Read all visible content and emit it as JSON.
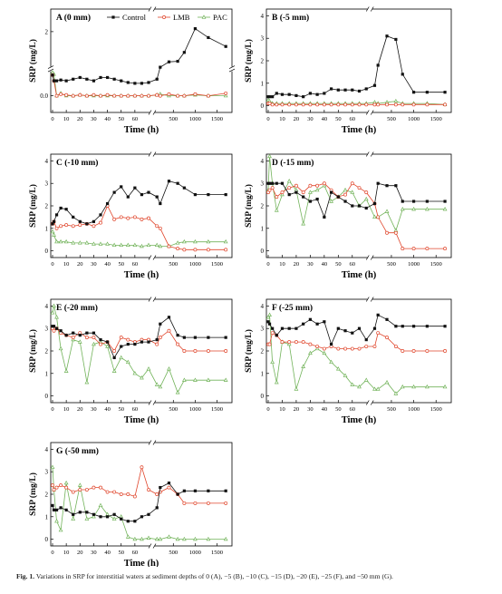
{
  "caption": {
    "label": "Fig. 1.",
    "text": "Variations in SRP for interstitial waters at sediment depths of 0 (A), −5 (B), −10 (C), −15 (D), −20 (E), −25 (F), and −50 mm (G)."
  },
  "colors": {
    "Control": "#111111",
    "LMB": "#e0452b",
    "PAC": "#72b35a"
  },
  "chart_data": [
    {
      "type": "line",
      "title": "A (0 mm)",
      "xlabel": "Time (h)",
      "ylabel": "SRP (mg/L)",
      "yticks": [
        0.0,
        2
      ],
      "ylim": [
        -0.2,
        2.7
      ],
      "ybreak": true,
      "legend": "top",
      "x": [
        0,
        1,
        3,
        6,
        10,
        15,
        20,
        25,
        30,
        35,
        40,
        45,
        50,
        55,
        60,
        65,
        70,
        125,
        200,
        400,
        600,
        750,
        1000,
        1300,
        1700
      ],
      "xticks": [
        0,
        10,
        20,
        30,
        40,
        50,
        60,
        500,
        1000,
        1500
      ],
      "series": [
        {
          "name": "Control",
          "values": [
            0.25,
            0.18,
            0.18,
            0.19,
            0.18,
            0.2,
            0.22,
            0.2,
            0.18,
            0.22,
            0.22,
            0.2,
            0.18,
            0.16,
            0.15,
            0.15,
            0.16,
            0.2,
            0.8,
            0.98,
            1.0,
            1.3,
            2.1,
            1.8,
            1.5
          ]
        },
        {
          "name": "LMB",
          "values": [
            0.25,
            0.18,
            0.0,
            0.02,
            0.01,
            0.0,
            0.01,
            0.0,
            0.01,
            0.0,
            0.01,
            0.0,
            0.0,
            0.0,
            0.0,
            0.0,
            0.0,
            0.01,
            0.0,
            0.02,
            0.0,
            0.0,
            0.02,
            0.0,
            0.03
          ]
        },
        {
          "name": "PAC",
          "values": [
            0.28,
            0.26,
            0.0,
            0.03,
            0.0,
            0.0,
            0.01,
            0.0,
            0.0,
            0.0,
            0.0,
            0.0,
            0.0,
            0.0,
            0.0,
            0.0,
            0.0,
            0.01,
            0.02,
            0.0,
            0.0,
            0.0,
            0.01,
            0.0,
            0.0
          ]
        }
      ]
    },
    {
      "type": "line",
      "title": "B (-5 mm)",
      "xlabel": "Time (h)",
      "ylabel": "SRP (mg/L)",
      "yticks": [
        0,
        1,
        2,
        3,
        4
      ],
      "ylim": [
        -0.3,
        4.3
      ],
      "x": [
        0,
        1,
        3,
        6,
        10,
        15,
        20,
        25,
        30,
        35,
        40,
        45,
        50,
        55,
        60,
        65,
        70,
        125,
        200,
        400,
        600,
        750,
        1000,
        1300,
        1700
      ],
      "xticks": [
        0,
        10,
        20,
        30,
        40,
        50,
        60,
        500,
        1000,
        1500
      ],
      "series": [
        {
          "name": "Control",
          "values": [
            0.4,
            0.4,
            0.4,
            0.55,
            0.5,
            0.5,
            0.45,
            0.4,
            0.55,
            0.5,
            0.55,
            0.75,
            0.7,
            0.7,
            0.7,
            0.65,
            0.75,
            0.9,
            1.8,
            3.1,
            2.95,
            1.4,
            0.6,
            0.6,
            0.6
          ]
        },
        {
          "name": "LMB",
          "values": [
            0.1,
            0.1,
            0.05,
            0.05,
            0.05,
            0.05,
            0.05,
            0.05,
            0.05,
            0.05,
            0.05,
            0.05,
            0.05,
            0.05,
            0.05,
            0.05,
            0.05,
            0.05,
            0.05,
            0.05,
            0.05,
            0.05,
            0.05,
            0.05,
            0.05
          ]
        },
        {
          "name": "PAC",
          "values": [
            0.25,
            0.2,
            0.1,
            0.1,
            0.1,
            0.1,
            0.1,
            0.1,
            0.1,
            0.1,
            0.1,
            0.1,
            0.1,
            0.1,
            0.1,
            0.1,
            0.1,
            0.15,
            0.1,
            0.15,
            0.2,
            0.1,
            0.1,
            0.1,
            0.05
          ]
        }
      ]
    },
    {
      "type": "line",
      "title": "C (-10 mm)",
      "xlabel": "Time (h)",
      "ylabel": "SRP (mg/L)",
      "yticks": [
        0,
        1,
        2,
        3,
        4
      ],
      "ylim": [
        -0.3,
        4.3
      ],
      "x": [
        0,
        1,
        3,
        6,
        10,
        15,
        20,
        25,
        30,
        35,
        40,
        45,
        50,
        55,
        60,
        65,
        70,
        125,
        200,
        400,
        600,
        750,
        1000,
        1300,
        1700
      ],
      "xticks": [
        0,
        10,
        20,
        30,
        40,
        50,
        60,
        500,
        1000,
        1500
      ],
      "series": [
        {
          "name": "Control",
          "values": [
            1.2,
            1.3,
            1.6,
            1.9,
            1.85,
            1.5,
            1.3,
            1.2,
            1.3,
            1.6,
            2.1,
            2.6,
            2.85,
            2.4,
            2.8,
            2.5,
            2.6,
            2.4,
            2.1,
            3.1,
            3.0,
            2.8,
            2.5,
            2.5,
            2.5
          ]
        },
        {
          "name": "LMB",
          "values": [
            1.2,
            1.3,
            1.0,
            1.1,
            1.15,
            1.1,
            1.15,
            1.2,
            1.1,
            1.25,
            2.0,
            1.4,
            1.5,
            1.45,
            1.5,
            1.4,
            1.45,
            1.1,
            1.0,
            0.2,
            0.1,
            0.05,
            0.05,
            0.05,
            0.05
          ]
        },
        {
          "name": "PAC",
          "values": [
            0.85,
            0.7,
            0.4,
            0.4,
            0.4,
            0.35,
            0.35,
            0.35,
            0.3,
            0.3,
            0.3,
            0.25,
            0.25,
            0.25,
            0.25,
            0.2,
            0.25,
            0.25,
            0.2,
            0.2,
            0.35,
            0.4,
            0.4,
            0.4,
            0.4
          ]
        }
      ]
    },
    {
      "type": "line",
      "title": "D (-15 mm)",
      "xlabel": "Time (h)",
      "ylabel": "SRP (mg/L)",
      "yticks": [
        0,
        1,
        2,
        3,
        4
      ],
      "ylim": [
        -0.3,
        4.3
      ],
      "x": [
        0,
        1,
        3,
        6,
        10,
        15,
        20,
        25,
        30,
        35,
        40,
        45,
        50,
        55,
        60,
        65,
        70,
        125,
        200,
        400,
        600,
        750,
        1000,
        1300,
        1700
      ],
      "xticks": [
        0,
        10,
        20,
        30,
        40,
        50,
        60,
        500,
        1000,
        1500
      ],
      "series": [
        {
          "name": "Control",
          "values": [
            3.0,
            3.0,
            3.0,
            3.0,
            3.0,
            2.5,
            2.6,
            2.4,
            2.2,
            2.3,
            1.5,
            2.6,
            2.4,
            2.2,
            2.0,
            2.0,
            1.9,
            2.1,
            3.0,
            2.9,
            2.9,
            2.2,
            2.2,
            2.2,
            2.2
          ]
        },
        {
          "name": "LMB",
          "values": [
            2.6,
            2.7,
            2.8,
            2.4,
            2.6,
            2.8,
            2.9,
            2.6,
            2.9,
            2.9,
            3.0,
            2.7,
            2.4,
            2.5,
            3.0,
            2.8,
            2.6,
            2.1,
            1.5,
            0.8,
            0.8,
            0.1,
            0.1,
            0.1,
            0.1
          ]
        },
        {
          "name": "PAC",
          "values": [
            2.7,
            4.2,
            3.0,
            1.8,
            2.5,
            3.1,
            2.7,
            1.2,
            2.6,
            2.7,
            2.9,
            2.2,
            2.4,
            2.7,
            2.6,
            2.0,
            2.3,
            1.5,
            1.5,
            1.75,
            0.9,
            1.85,
            1.85,
            1.85,
            1.85
          ]
        }
      ]
    },
    {
      "type": "line",
      "title": "E (-20 mm)",
      "xlabel": "Time (h)",
      "ylabel": "SRP (mg/L)",
      "yticks": [
        0,
        1,
        2,
        3,
        4
      ],
      "ylim": [
        -0.3,
        4.3
      ],
      "x": [
        0,
        1,
        3,
        6,
        10,
        15,
        20,
        25,
        30,
        35,
        40,
        45,
        50,
        55,
        60,
        65,
        70,
        125,
        200,
        400,
        600,
        750,
        1000,
        1300,
        1700
      ],
      "xticks": [
        0,
        10,
        20,
        30,
        40,
        50,
        60,
        500,
        1000,
        1500
      ],
      "series": [
        {
          "name": "Control",
          "values": [
            3.1,
            3.1,
            3.0,
            2.9,
            2.7,
            2.8,
            2.7,
            2.8,
            2.8,
            2.5,
            2.4,
            1.7,
            2.2,
            2.3,
            2.3,
            2.4,
            2.4,
            2.5,
            3.2,
            3.5,
            2.7,
            2.6,
            2.6,
            2.6,
            2.6
          ]
        },
        {
          "name": "LMB",
          "values": [
            3.0,
            2.9,
            3.0,
            2.8,
            2.7,
            2.6,
            2.8,
            2.6,
            2.6,
            2.3,
            2.4,
            2.0,
            2.6,
            2.5,
            2.4,
            2.5,
            2.5,
            2.3,
            2.6,
            2.9,
            2.3,
            2.0,
            2.0,
            2.0,
            2.0
          ]
        },
        {
          "name": "PAC",
          "values": [
            3.7,
            4.0,
            3.5,
            2.1,
            1.1,
            2.5,
            2.4,
            0.6,
            2.3,
            2.4,
            2.2,
            1.1,
            1.7,
            1.5,
            1.0,
            0.8,
            1.2,
            0.5,
            0.4,
            1.2,
            0.15,
            0.7,
            0.7,
            0.7,
            0.7
          ]
        }
      ]
    },
    {
      "type": "line",
      "title": "F (-25 mm)",
      "xlabel": "Time (h)",
      "ylabel": "SRP (mg/L)",
      "yticks": [
        0,
        1,
        2,
        3,
        4
      ],
      "ylim": [
        -0.3,
        4.3
      ],
      "x": [
        0,
        1,
        3,
        6,
        10,
        15,
        20,
        25,
        30,
        35,
        40,
        45,
        50,
        55,
        60,
        65,
        70,
        125,
        200,
        400,
        600,
        750,
        1000,
        1300,
        1700
      ],
      "xticks": [
        0,
        10,
        20,
        30,
        40,
        50,
        60,
        500,
        1000,
        1500
      ],
      "series": [
        {
          "name": "Control",
          "values": [
            3.3,
            3.2,
            3.0,
            2.7,
            3.0,
            3.0,
            3.0,
            3.2,
            3.4,
            3.2,
            3.3,
            2.3,
            3.0,
            2.9,
            2.8,
            3.0,
            2.5,
            3.0,
            3.6,
            3.4,
            3.1,
            3.1,
            3.1,
            3.1,
            3.1
          ]
        },
        {
          "name": "LMB",
          "values": [
            2.3,
            2.3,
            2.8,
            2.7,
            2.4,
            2.4,
            2.4,
            2.4,
            2.3,
            2.2,
            2.1,
            2.2,
            2.1,
            2.1,
            2.1,
            2.1,
            2.2,
            2.2,
            2.8,
            2.6,
            2.2,
            2.0,
            2.0,
            2.0,
            2.0
          ]
        },
        {
          "name": "PAC",
          "values": [
            3.5,
            3.6,
            1.5,
            0.6,
            2.4,
            2.3,
            0.3,
            1.3,
            1.9,
            2.1,
            1.9,
            1.5,
            1.2,
            0.9,
            0.5,
            0.4,
            0.7,
            0.3,
            0.3,
            0.6,
            0.1,
            0.4,
            0.4,
            0.4,
            0.4
          ]
        }
      ]
    },
    {
      "type": "line",
      "title": "G (-50 mm)",
      "xlabel": "Time (h)",
      "ylabel": "SRP (mg/L)",
      "yticks": [
        0,
        1,
        2,
        3,
        4
      ],
      "ylim": [
        -0.3,
        4.3
      ],
      "x": [
        0,
        1,
        3,
        6,
        10,
        15,
        20,
        25,
        30,
        35,
        40,
        45,
        50,
        55,
        60,
        65,
        70,
        125,
        200,
        400,
        600,
        750,
        1000,
        1300,
        1700
      ],
      "xticks": [
        0,
        10,
        20,
        30,
        40,
        50,
        60,
        500,
        1000,
        1500
      ],
      "series": [
        {
          "name": "Control",
          "values": [
            1.5,
            1.3,
            1.3,
            1.4,
            1.3,
            1.1,
            1.2,
            1.2,
            1.1,
            1.0,
            1.0,
            1.1,
            0.9,
            0.8,
            0.8,
            1.0,
            1.1,
            1.4,
            2.3,
            2.5,
            2.0,
            2.15,
            2.15,
            2.15,
            2.15
          ]
        },
        {
          "name": "LMB",
          "values": [
            2.4,
            2.2,
            2.3,
            2.4,
            2.3,
            2.1,
            2.2,
            2.2,
            2.3,
            2.3,
            2.1,
            2.1,
            2.0,
            2.0,
            1.9,
            3.2,
            2.2,
            2.0,
            2.1,
            2.3,
            2.0,
            1.6,
            1.6,
            1.6,
            1.6
          ]
        },
        {
          "name": "PAC",
          "values": [
            3.2,
            2.2,
            0.8,
            0.4,
            2.5,
            0.9,
            2.4,
            0.9,
            1.0,
            1.5,
            1.1,
            0.9,
            1.0,
            0.1,
            0.0,
            0.0,
            0.05,
            0.0,
            0.0,
            0.1,
            0.0,
            0.0,
            0.0,
            0.0,
            0.0
          ]
        }
      ]
    }
  ]
}
